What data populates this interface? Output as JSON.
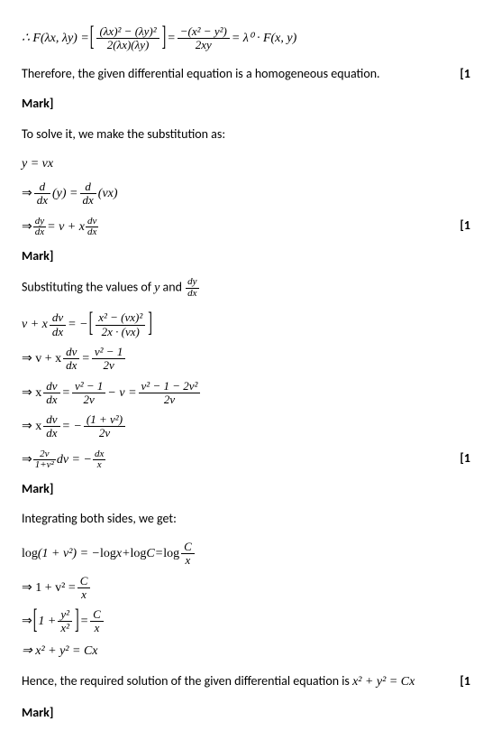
{
  "eq1_pre": "∴ F(λx, λy) = ",
  "eq1_num1": "(λx)² − (λy)²",
  "eq1_den1": "2(λx)(λy)",
  "eq1_mid": " = ",
  "eq1_num2": "−(x² − y²)",
  "eq1_den2": "2xy",
  "eq1_post": " = λ⁰ · F(x, y)",
  "t1": "Therefore, the given differential equation is a homogeneous equation.",
  "mark_label": "[1",
  "mark_word": "Mark]",
  "t2": "To solve it, we make the substitution as:",
  "eq_yvx": "y = vx",
  "eq_d1_pre": "⇒ ",
  "eq_d1_num1": "d",
  "eq_d1_den1": "dx",
  "eq_d1_mid1": "(y) = ",
  "eq_d1_num2": "d",
  "eq_d1_den2": "dx",
  "eq_d1_post": " (vx)",
  "eq_d2_pre": "⇒ ",
  "eq_d2_num1": "dy",
  "eq_d2_den1": "dx",
  "eq_d2_mid": " = v + x",
  "eq_d2_num2": "dv",
  "eq_d2_den2": "dx",
  "t3a": "Substituting the values of ",
  "t3_y": "y",
  "t3b": " and ",
  "t3_num": "dy",
  "t3_den": "dx",
  "eq_s1_pre": "v + x",
  "eq_s1_numA": "dv",
  "eq_s1_denA": "dx",
  "eq_s1_mid": " = − ",
  "eq_s1_numB": "x² − (vx)²",
  "eq_s1_denB": "2x · (vx)",
  "eq_s2_pre": "⇒ v + x",
  "eq_s2_numA": "dv",
  "eq_s2_denA": "dx",
  "eq_s2_mid": " = ",
  "eq_s2_numB": "v² − 1",
  "eq_s2_denB": "2v",
  "eq_s3_pre": "⇒ x",
  "eq_s3_numA": "dv",
  "eq_s3_denA": "dx",
  "eq_s3_mid1": " = ",
  "eq_s3_numB": "v² − 1",
  "eq_s3_denB": "2v",
  "eq_s3_mid2": " − v = ",
  "eq_s3_numC": "v² − 1 − 2v²",
  "eq_s3_denC": "2v",
  "eq_s4_pre": "⇒ x",
  "eq_s4_numA": "dv",
  "eq_s4_denA": "dx",
  "eq_s4_mid": " = − ",
  "eq_s4_numB": "(1 + v²)",
  "eq_s4_denB": "2v",
  "eq_s5_pre": "⇒ ",
  "eq_s5_numA": "2v",
  "eq_s5_denA": "1+v²",
  "eq_s5_mid": " dv = − ",
  "eq_s5_numB": "dx",
  "eq_s5_denB": "x",
  "t4": "Integrating both sides, we get:",
  "eq_i1_pre": "log(1 + v²) = −log",
  "eq_i1_x": "x",
  "eq_i1_mid": " + log",
  "eq_i1_C": "C",
  "eq_i1_eq": " = log",
  "eq_i1_num": "C",
  "eq_i1_den": "x",
  "eq_i2_pre": "⇒ 1 + v² = ",
  "eq_i2_num": "C",
  "eq_i2_den": "x",
  "eq_i3_pre": "⇒ ",
  "eq_i3_in": "1 + ",
  "eq_i3_numA": "y²",
  "eq_i3_denA": "x²",
  "eq_i3_mid": " = ",
  "eq_i3_numB": "C",
  "eq_i3_denB": "x",
  "eq_i4": "⇒ x² + y² = Cx",
  "t5a": "Hence, the required solution of the given differential equation is ",
  "t5b": "x² + y² = Cx"
}
